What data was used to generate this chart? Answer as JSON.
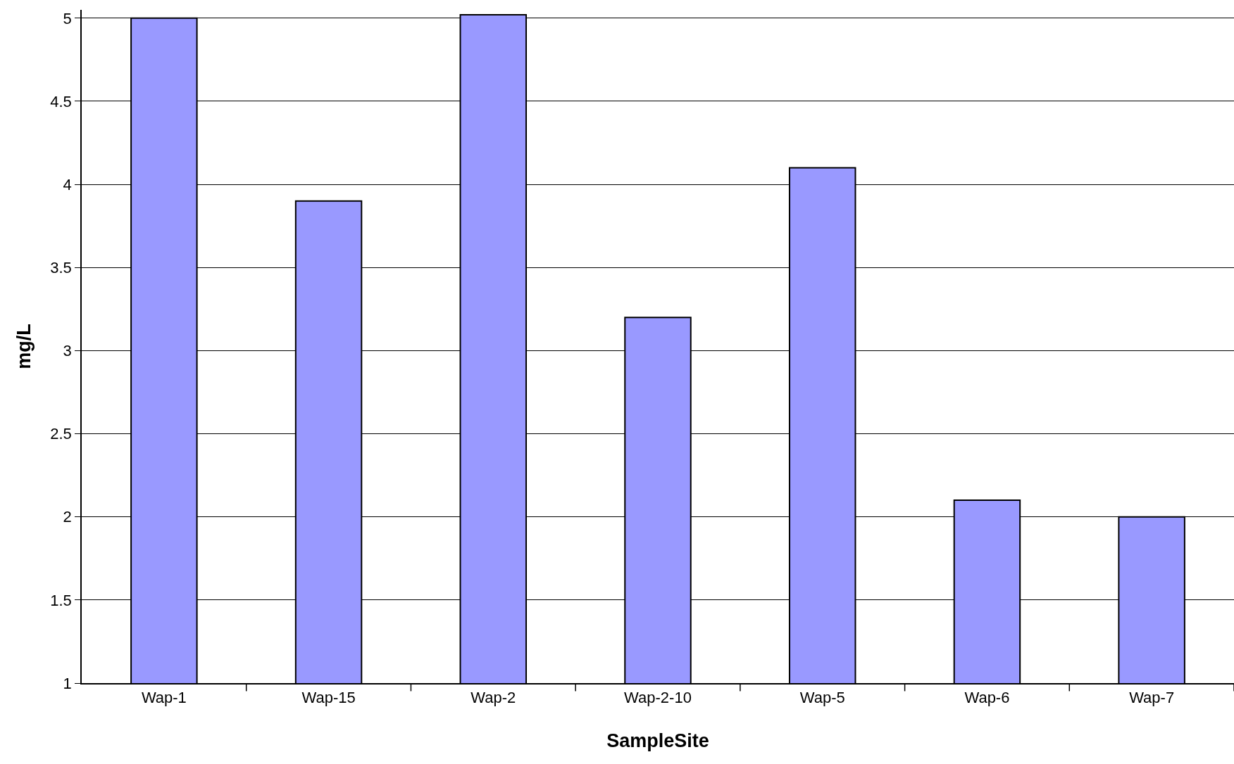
{
  "chart_data": {
    "type": "bar",
    "xlabel": "SampleSite",
    "ylabel": "mg/L",
    "categories": [
      "Wap-1",
      "Wap-15",
      "Wap-2",
      "Wap-2-10",
      "Wap-5",
      "Wap-6",
      "Wap-7"
    ],
    "values": [
      5,
      3.9,
      5.02,
      3.2,
      4.1,
      2.1,
      2
    ],
    "color": "#9999ff",
    "ylim": [
      1,
      5.05
    ],
    "yticks": [
      1,
      1.5,
      2,
      2.5,
      3,
      3.5,
      4,
      4.5,
      5
    ],
    "grid": "y"
  }
}
